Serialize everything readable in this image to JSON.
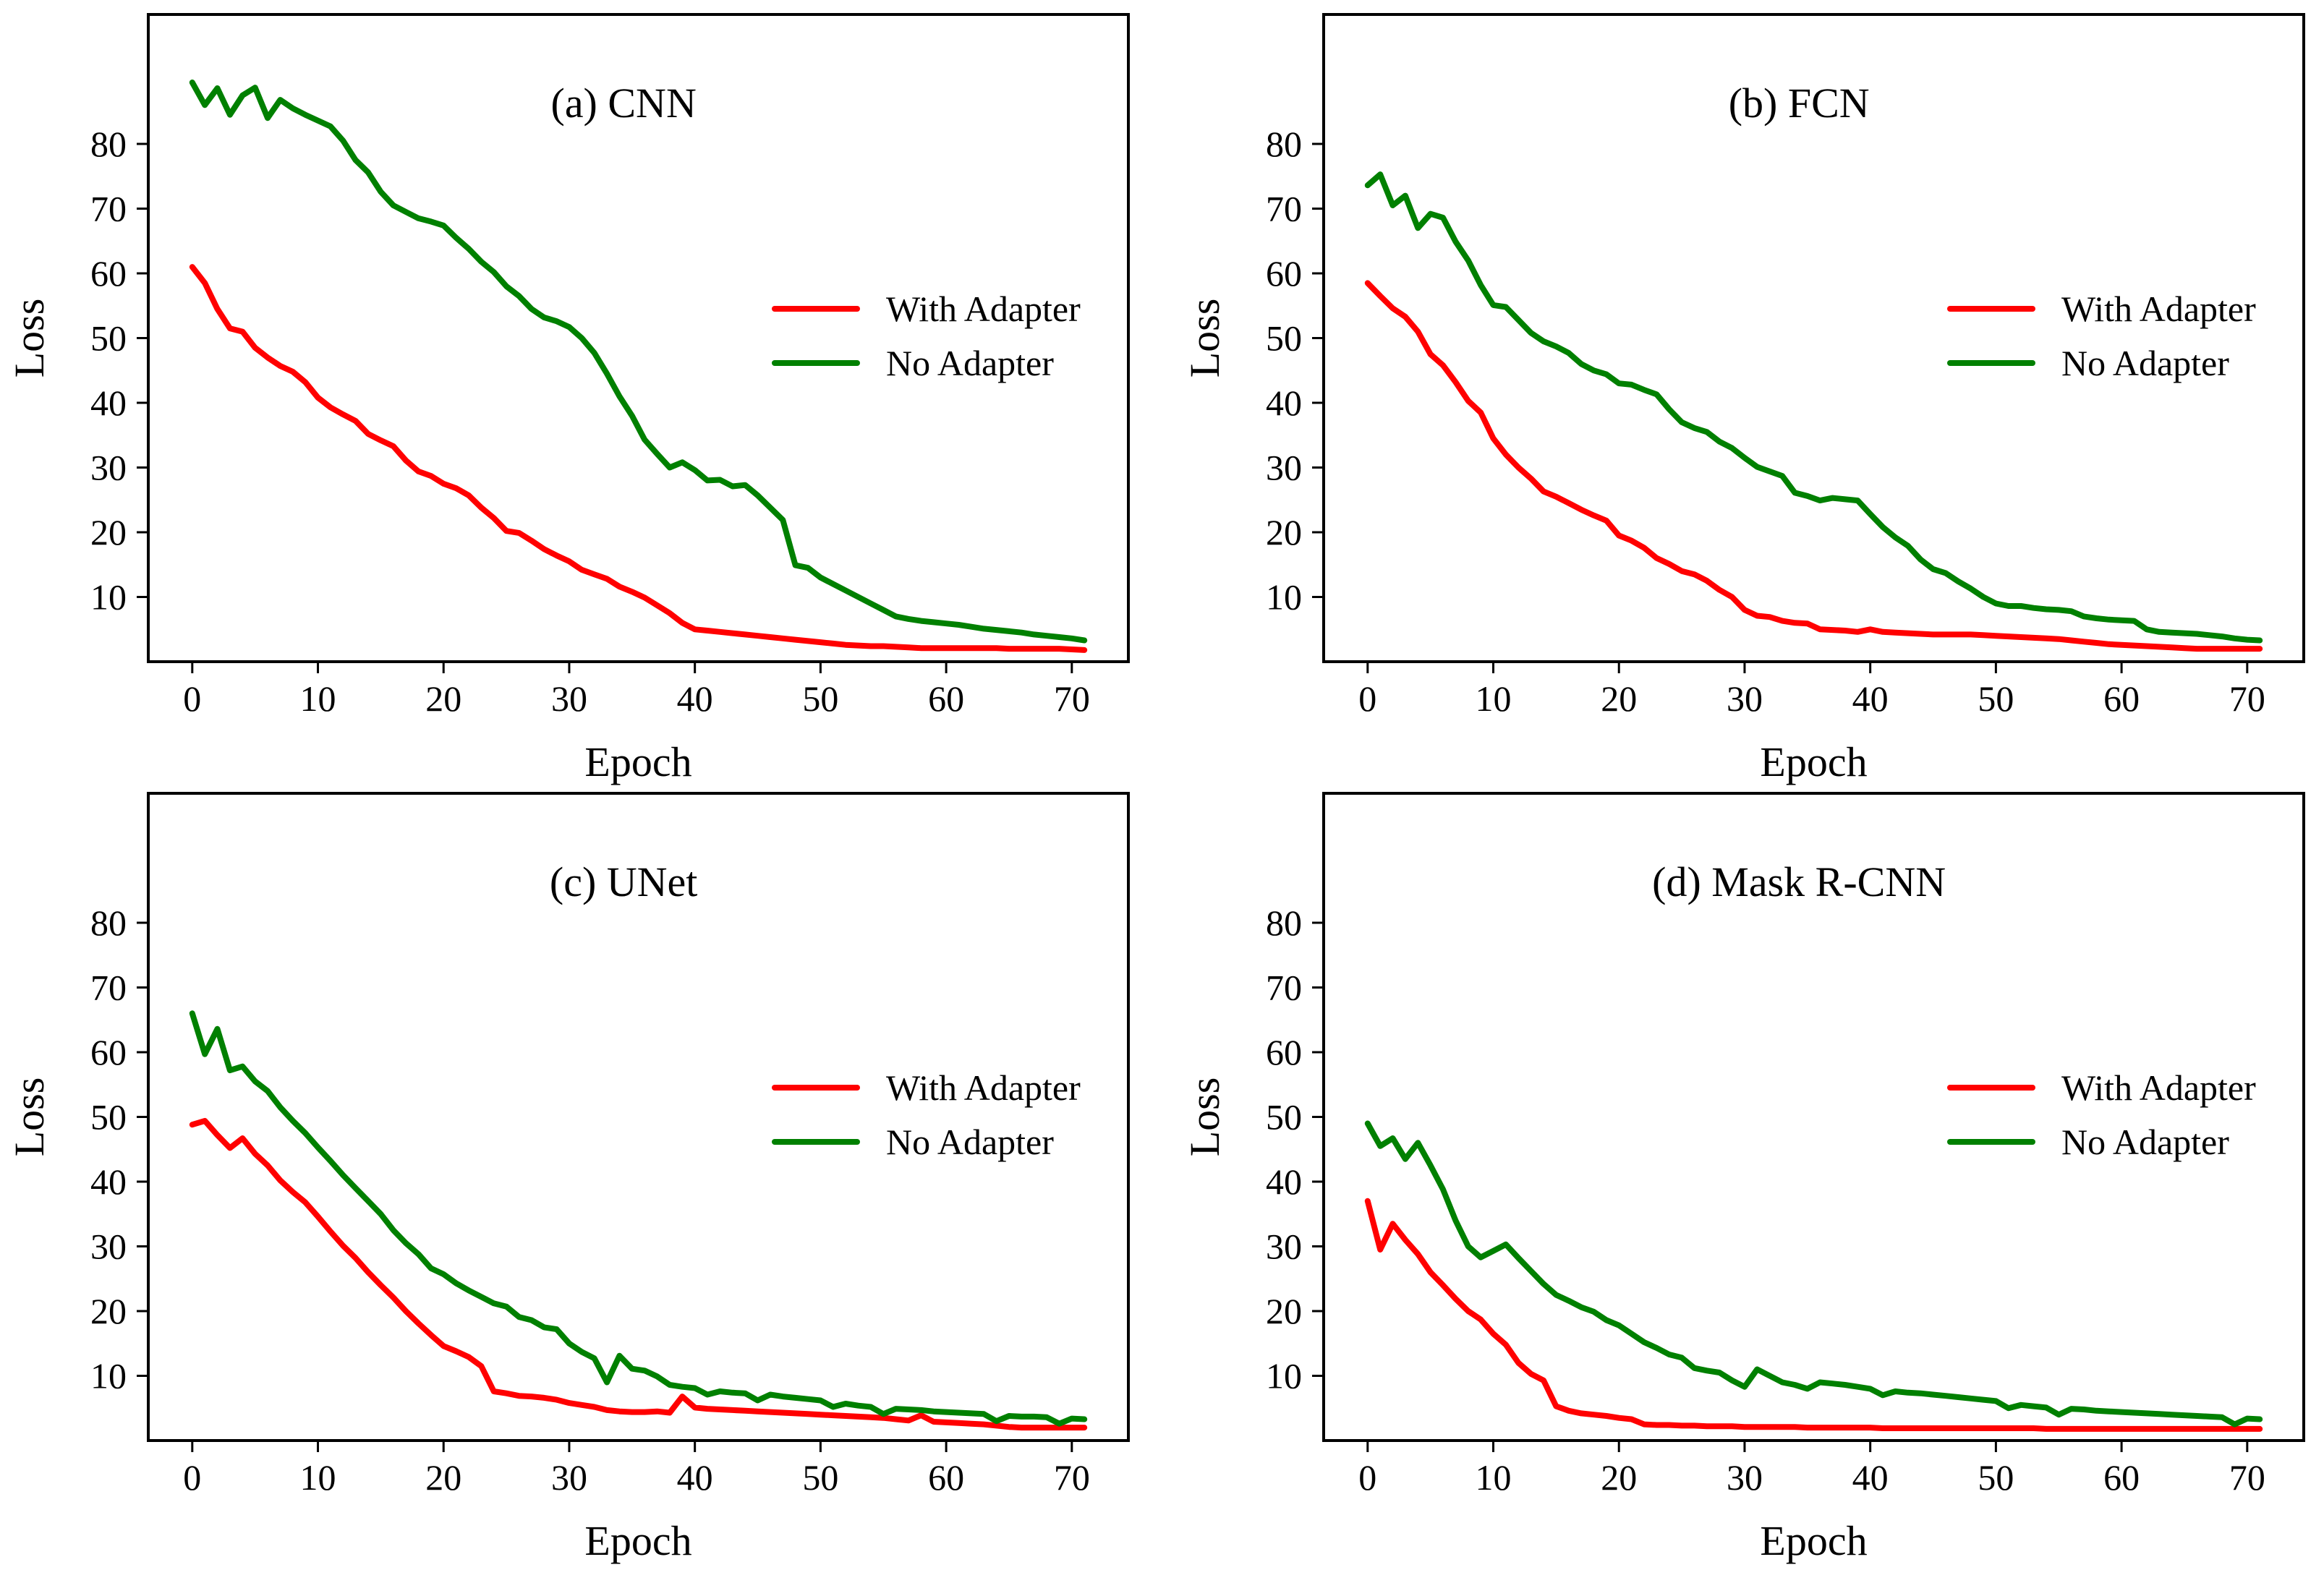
{
  "figure": {
    "series_colors": {
      "with": "#ff0000",
      "no": "#008000"
    }
  },
  "chart_data": [
    {
      "type": "line",
      "title": "(a) CNN",
      "xlabel": "Epoch",
      "ylabel": "Loss",
      "xlim": [
        -3.5,
        74.5
      ],
      "ylim": [
        0,
        100
      ],
      "xticks": [
        0,
        10,
        20,
        30,
        40,
        50,
        60,
        70
      ],
      "yticks": [
        10,
        20,
        30,
        40,
        50,
        60,
        70,
        80
      ],
      "grid": false,
      "legend_location": "center-right",
      "x": [
        0,
        1,
        2,
        3,
        4,
        5,
        6,
        7,
        8,
        9,
        10,
        11,
        12,
        13,
        14,
        15,
        16,
        17,
        18,
        19,
        20,
        21,
        22,
        23,
        24,
        25,
        26,
        27,
        28,
        29,
        30,
        31,
        32,
        33,
        34,
        35,
        36,
        37,
        38,
        39,
        40,
        41,
        42,
        43,
        44,
        45,
        46,
        47,
        48,
        49,
        50,
        51,
        52,
        53,
        54,
        55,
        56,
        57,
        58,
        59,
        60,
        61,
        62,
        63,
        64,
        65,
        66,
        67,
        68,
        69,
        70,
        71
      ],
      "series": [
        {
          "name": "With Adapter",
          "color": "#ff0000",
          "values": [
            61,
            58.5,
            54.5,
            51.5,
            51,
            48.5,
            47,
            45.7,
            44.8,
            43.2,
            40.8,
            39.3,
            38.2,
            37.2,
            35.2,
            34.2,
            33.3,
            31.1,
            29.4,
            28.7,
            27.5,
            26.8,
            25.7,
            23.8,
            22.2,
            20.2,
            19.9,
            18.7,
            17.4,
            16.4,
            15.5,
            14.2,
            13.5,
            12.8,
            11.6,
            10.8,
            9.9,
            8.7,
            7.5,
            6,
            5,
            4.8,
            4.6,
            4.4,
            4.2,
            4,
            3.8,
            3.6,
            3.4,
            3.2,
            3,
            2.8,
            2.6,
            2.5,
            2.4,
            2.4,
            2.3,
            2.2,
            2.1,
            2.1,
            2.1,
            2.1,
            2.1,
            2.1,
            2.1,
            2,
            2,
            2,
            2,
            2,
            1.9,
            1.8
          ]
        },
        {
          "name": "No Adapter",
          "color": "#008000",
          "values": [
            89.5,
            86,
            88.6,
            84.5,
            87.5,
            88.7,
            84,
            86.8,
            85.5,
            84.5,
            83.6,
            82.7,
            80.5,
            77.5,
            75.6,
            72.6,
            70.5,
            69.5,
            68.5,
            68,
            67.4,
            65.5,
            63.8,
            61.8,
            60.2,
            58,
            56.5,
            54.5,
            53.2,
            52.6,
            51.7,
            50,
            47.7,
            44.5,
            41,
            38,
            34.3,
            32.1,
            30,
            30.8,
            29.6,
            28,
            28.1,
            27.1,
            27.3,
            25.7,
            23.8,
            21.9,
            14.9,
            14.5,
            13,
            12,
            11,
            10,
            9,
            8,
            7,
            6.6,
            6.3,
            6.1,
            5.9,
            5.7,
            5.4,
            5.1,
            4.9,
            4.7,
            4.5,
            4.2,
            4,
            3.8,
            3.6,
            3.3
          ]
        }
      ]
    },
    {
      "type": "line",
      "title": "(b) FCN",
      "xlabel": "Epoch",
      "ylabel": "Loss",
      "xlim": [
        -3.5,
        74.5
      ],
      "ylim": [
        0,
        100
      ],
      "xticks": [
        0,
        10,
        20,
        30,
        40,
        50,
        60,
        70
      ],
      "yticks": [
        10,
        20,
        30,
        40,
        50,
        60,
        70,
        80
      ],
      "grid": false,
      "legend_location": "center-right",
      "x": [
        0,
        1,
        2,
        3,
        4,
        5,
        6,
        7,
        8,
        9,
        10,
        11,
        12,
        13,
        14,
        15,
        16,
        17,
        18,
        19,
        20,
        21,
        22,
        23,
        24,
        25,
        26,
        27,
        28,
        29,
        30,
        31,
        32,
        33,
        34,
        35,
        36,
        37,
        38,
        39,
        40,
        41,
        42,
        43,
        44,
        45,
        46,
        47,
        48,
        49,
        50,
        51,
        52,
        53,
        54,
        55,
        56,
        57,
        58,
        59,
        60,
        61,
        62,
        63,
        64,
        65,
        66,
        67,
        68,
        69,
        70,
        71
      ],
      "series": [
        {
          "name": "With Adapter",
          "color": "#ff0000",
          "values": [
            58.5,
            56.5,
            54.6,
            53.3,
            51,
            47.5,
            45.8,
            43.2,
            40.3,
            38.5,
            34.5,
            32,
            30,
            28.3,
            26.3,
            25.5,
            24.5,
            23.5,
            22.6,
            21.8,
            19.5,
            18.7,
            17.6,
            16,
            15.1,
            14,
            13.5,
            12.5,
            11.1,
            10,
            8,
            7.1,
            6.9,
            6.3,
            6,
            5.9,
            5,
            4.9,
            4.8,
            4.6,
            5,
            4.6,
            4.5,
            4.4,
            4.3,
            4.2,
            4.2,
            4.2,
            4.2,
            4.1,
            4,
            3.9,
            3.8,
            3.7,
            3.6,
            3.5,
            3.3,
            3.1,
            2.9,
            2.7,
            2.6,
            2.5,
            2.4,
            2.3,
            2.2,
            2.1,
            2,
            2,
            2,
            2,
            2,
            2
          ]
        },
        {
          "name": "No Adapter",
          "color": "#008000",
          "values": [
            73.6,
            75.3,
            70.5,
            72,
            67,
            69.2,
            68.6,
            64.9,
            62,
            58.2,
            55.1,
            54.8,
            52.8,
            50.8,
            49.5,
            48.7,
            47.7,
            46,
            45,
            44.4,
            43,
            42.8,
            42,
            41.3,
            39,
            37,
            36.1,
            35.5,
            34,
            33,
            31.5,
            30.1,
            29.4,
            28.7,
            26.1,
            25.6,
            24.9,
            25.3,
            25.1,
            24.9,
            22.8,
            20.8,
            19.2,
            17.9,
            15.8,
            14.3,
            13.7,
            12.4,
            11.3,
            10,
            9,
            8.6,
            8.6,
            8.3,
            8.1,
            8,
            7.8,
            7,
            6.7,
            6.5,
            6.4,
            6.3,
            5,
            4.6,
            4.5,
            4.4,
            4.3,
            4.1,
            3.9,
            3.6,
            3.4,
            3.3
          ]
        }
      ]
    },
    {
      "type": "line",
      "title": "(c) UNet",
      "xlabel": "Epoch",
      "ylabel": "Loss",
      "xlim": [
        -3.5,
        74.5
      ],
      "ylim": [
        0,
        100
      ],
      "xticks": [
        0,
        10,
        20,
        30,
        40,
        50,
        60,
        70
      ],
      "yticks": [
        10,
        20,
        30,
        40,
        50,
        60,
        70,
        80
      ],
      "grid": false,
      "legend_location": "center-right",
      "x": [
        0,
        1,
        2,
        3,
        4,
        5,
        6,
        7,
        8,
        9,
        10,
        11,
        12,
        13,
        14,
        15,
        16,
        17,
        18,
        19,
        20,
        21,
        22,
        23,
        24,
        25,
        26,
        27,
        28,
        29,
        30,
        31,
        32,
        33,
        34,
        35,
        36,
        37,
        38,
        39,
        40,
        41,
        42,
        43,
        44,
        45,
        46,
        47,
        48,
        49,
        50,
        51,
        52,
        53,
        54,
        55,
        56,
        57,
        58,
        59,
        60,
        61,
        62,
        63,
        64,
        65,
        66,
        67,
        68,
        69,
        70,
        71
      ],
      "series": [
        {
          "name": "With Adapter",
          "color": "#ff0000",
          "values": [
            48.8,
            49.4,
            47.2,
            45.2,
            46.7,
            44.3,
            42.5,
            40.2,
            38.4,
            36.8,
            34.6,
            32.3,
            30.1,
            28.2,
            26,
            24,
            22.1,
            20,
            18.1,
            16.3,
            14.6,
            13.8,
            12.9,
            11.5,
            7.6,
            7.3,
            6.9,
            6.8,
            6.6,
            6.3,
            5.8,
            5.5,
            5.2,
            4.7,
            4.5,
            4.4,
            4.4,
            4.5,
            4.3,
            6.8,
            5.1,
            4.9,
            4.8,
            4.7,
            4.6,
            4.5,
            4.4,
            4.3,
            4.2,
            4.1,
            4,
            3.9,
            3.8,
            3.7,
            3.6,
            3.5,
            3.3,
            3.1,
            3.9,
            2.9,
            2.8,
            2.7,
            2.6,
            2.5,
            2.3,
            2.1,
            2,
            2,
            2,
            2,
            2,
            2
          ]
        },
        {
          "name": "No Adapter",
          "color": "#008000",
          "values": [
            66,
            59.7,
            63.6,
            57.2,
            57.8,
            55.5,
            54,
            51.5,
            49.4,
            47.5,
            45.3,
            43.2,
            41,
            39,
            37,
            35,
            32.5,
            30.5,
            28.8,
            26.6,
            25.7,
            24.3,
            23.2,
            22.2,
            21.2,
            20.7,
            19.1,
            18.6,
            17.5,
            17.2,
            15,
            13.7,
            12.7,
            9,
            13.1,
            11.1,
            10.8,
            9.9,
            8.6,
            8.3,
            8.1,
            7.1,
            7.6,
            7.4,
            7.3,
            6.2,
            7.1,
            6.8,
            6.6,
            6.4,
            6.2,
            5.2,
            5.7,
            5.4,
            5.2,
            4.1,
            4.9,
            4.8,
            4.7,
            4.5,
            4.4,
            4.3,
            4.2,
            4.1,
            3,
            3.8,
            3.7,
            3.7,
            3.6,
            2.6,
            3.4,
            3.3
          ]
        }
      ]
    },
    {
      "type": "line",
      "title": "(d) Mask R-CNN",
      "xlabel": "Epoch",
      "ylabel": "Loss",
      "xlim": [
        -3.5,
        74.5
      ],
      "ylim": [
        0,
        100
      ],
      "xticks": [
        0,
        10,
        20,
        30,
        40,
        50,
        60,
        70
      ],
      "yticks": [
        10,
        20,
        30,
        40,
        50,
        60,
        70,
        80
      ],
      "grid": false,
      "legend_location": "center-right",
      "x": [
        0,
        1,
        2,
        3,
        4,
        5,
        6,
        7,
        8,
        9,
        10,
        11,
        12,
        13,
        14,
        15,
        16,
        17,
        18,
        19,
        20,
        21,
        22,
        23,
        24,
        25,
        26,
        27,
        28,
        29,
        30,
        31,
        32,
        33,
        34,
        35,
        36,
        37,
        38,
        39,
        40,
        41,
        42,
        43,
        44,
        45,
        46,
        47,
        48,
        49,
        50,
        51,
        52,
        53,
        54,
        55,
        56,
        57,
        58,
        59,
        60,
        61,
        62,
        63,
        64,
        65,
        66,
        67,
        68,
        69,
        70,
        71
      ],
      "series": [
        {
          "name": "With Adapter",
          "color": "#ff0000",
          "values": [
            37,
            29.5,
            33.5,
            31,
            28.8,
            26,
            24,
            21.9,
            20,
            18.7,
            16.5,
            14.8,
            12,
            10.3,
            9.3,
            5.3,
            4.6,
            4.2,
            4,
            3.8,
            3.5,
            3.3,
            2.5,
            2.4,
            2.4,
            2.3,
            2.3,
            2.2,
            2.2,
            2.2,
            2.1,
            2.1,
            2.1,
            2.1,
            2.1,
            2,
            2,
            2,
            2,
            2,
            2,
            1.9,
            1.9,
            1.9,
            1.9,
            1.9,
            1.9,
            1.9,
            1.9,
            1.9,
            1.9,
            1.9,
            1.9,
            1.9,
            1.8,
            1.8,
            1.8,
            1.8,
            1.8,
            1.8,
            1.8,
            1.8,
            1.8,
            1.8,
            1.8,
            1.8,
            1.8,
            1.8,
            1.8,
            1.8,
            1.8,
            1.8
          ]
        },
        {
          "name": "No Adapter",
          "color": "#008000",
          "values": [
            49,
            45.5,
            46.7,
            43.5,
            46,
            42.5,
            38.8,
            34,
            30,
            28.3,
            29.3,
            30.3,
            28.2,
            26.2,
            24.2,
            22.5,
            21.6,
            20.6,
            19.9,
            18.6,
            17.8,
            16.5,
            15.2,
            14.3,
            13.3,
            12.8,
            11.2,
            10.8,
            10.5,
            9.3,
            8.3,
            11,
            10,
            9,
            8.6,
            8,
            9,
            8.8,
            8.6,
            8.3,
            8,
            7,
            7.6,
            7.4,
            7.3,
            7.1,
            6.9,
            6.7,
            6.5,
            6.3,
            6.1,
            5,
            5.5,
            5.3,
            5.1,
            4,
            4.9,
            4.8,
            4.6,
            4.5,
            4.4,
            4.3,
            4.2,
            4.1,
            4,
            3.9,
            3.8,
            3.7,
            3.6,
            2.5,
            3.4,
            3.3
          ]
        }
      ]
    }
  ]
}
